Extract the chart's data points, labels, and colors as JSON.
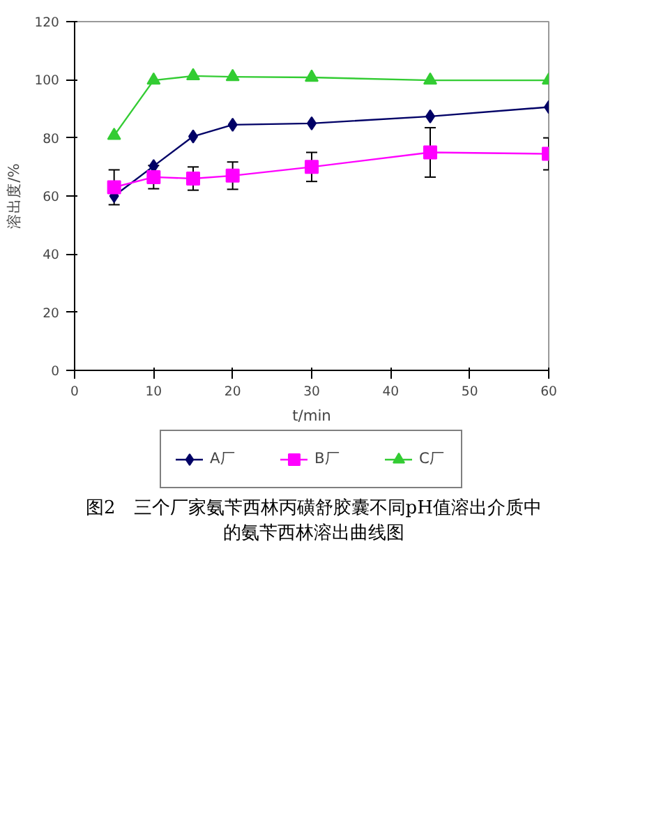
{
  "chart_data": {
    "type": "line",
    "title": "图2　三个厂家氨苄西林丙磺舒胶囊不同pH值溶出介质中的氨苄西林溶出曲线图",
    "xlabel": "t/min",
    "ylabel": "溶出度/%",
    "x": [
      5,
      10,
      15,
      20,
      30,
      45,
      60
    ],
    "series": [
      {
        "name": "A厂",
        "color": "#000066",
        "marker": "diamond",
        "values": [
          60,
          70.3,
          80.5,
          84.5,
          85,
          87.4,
          90.6
        ]
      },
      {
        "name": "B厂",
        "color": "#ff00ff",
        "marker": "square",
        "values": [
          63,
          66.5,
          66,
          67,
          70,
          75,
          74.5
        ],
        "errors": [
          6,
          4,
          4,
          4.7,
          5,
          8.5,
          5.5
        ]
      },
      {
        "name": "C厂",
        "color": "#33cc33",
        "marker": "triangle",
        "values": [
          80.8,
          99.8,
          101.3,
          101,
          100.8,
          99.8,
          99.8
        ]
      }
    ],
    "xlim": [
      0,
      60
    ],
    "xticks": [
      0,
      10,
      20,
      30,
      40,
      50,
      60
    ],
    "ylim": [
      0,
      120
    ],
    "yticks": [
      0,
      20,
      40,
      60,
      80,
      100,
      120
    ],
    "grid": false,
    "legend": "bottom",
    "line_style": "solid"
  }
}
